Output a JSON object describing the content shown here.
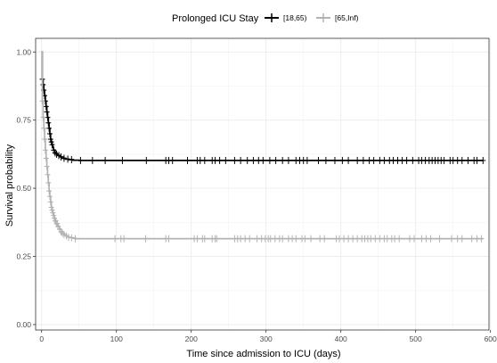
{
  "chart_data": {
    "type": "line",
    "title": "",
    "xlabel": "Time since admission to ICU (days)",
    "ylabel": "Survival probability",
    "xlim": [
      -8,
      598
    ],
    "ylim": [
      -0.02,
      1.05
    ],
    "xticks": [
      0,
      100,
      200,
      300,
      400,
      500,
      600
    ],
    "yticks": [
      0.0,
      0.25,
      0.5,
      0.75,
      1.0
    ],
    "ytick_labels": [
      "0.00",
      "0.25",
      "0.50",
      "0.75",
      "1.00"
    ],
    "grid": true,
    "legend": {
      "title": "Prolonged ICU Stay",
      "position": "top"
    },
    "series": [
      {
        "name": "[18,65)",
        "color": "#000000",
        "x": [
          0,
          1,
          2,
          3,
          4,
          5,
          6,
          7,
          8,
          9,
          10,
          11,
          12,
          13,
          14,
          15,
          16,
          18,
          20,
          22,
          25,
          28,
          32,
          36,
          42,
          50,
          590
        ],
        "y": [
          1.0,
          0.9,
          0.88,
          0.86,
          0.84,
          0.82,
          0.8,
          0.78,
          0.76,
          0.74,
          0.72,
          0.7,
          0.68,
          0.67,
          0.66,
          0.65,
          0.64,
          0.63,
          0.625,
          0.62,
          0.615,
          0.61,
          0.607,
          0.605,
          0.603,
          0.602,
          0.602
        ],
        "censor_x": [
          1,
          2,
          3,
          4,
          5,
          6,
          7,
          8,
          9,
          10,
          11,
          12,
          13,
          14,
          16,
          18,
          20,
          23,
          26,
          30,
          35,
          40,
          52,
          68,
          85,
          108,
          140,
          166,
          170,
          175,
          195,
          208,
          212,
          218,
          228,
          232,
          238,
          246,
          258,
          266,
          275,
          283,
          290,
          296,
          305,
          313,
          322,
          330,
          340,
          345,
          350,
          355,
          370,
          380,
          392,
          402,
          410,
          422,
          430,
          438,
          444,
          452,
          458,
          465,
          470,
          476,
          482,
          488,
          496,
          504,
          508,
          513,
          518,
          522,
          526,
          530,
          534,
          538,
          546,
          550,
          556,
          562,
          570,
          578,
          582,
          590
        ],
        "censor_y": 0.602
      },
      {
        "name": "[65,Inf)",
        "color": "#b3b3b3",
        "x": [
          0,
          1,
          2,
          3,
          4,
          5,
          6,
          7,
          8,
          9,
          10,
          11,
          12,
          13,
          14,
          15,
          16,
          17,
          18,
          20,
          22,
          24,
          26,
          28,
          30,
          33,
          36,
          40,
          45,
          590
        ],
        "y": [
          1.0,
          0.82,
          0.76,
          0.72,
          0.68,
          0.64,
          0.61,
          0.58,
          0.55,
          0.52,
          0.49,
          0.47,
          0.45,
          0.43,
          0.42,
          0.41,
          0.4,
          0.39,
          0.38,
          0.37,
          0.36,
          0.35,
          0.34,
          0.335,
          0.33,
          0.325,
          0.32,
          0.318,
          0.315,
          0.315
        ],
        "censor_x": [
          1,
          2,
          3,
          4,
          5,
          6,
          7,
          8,
          9,
          10,
          11,
          12,
          13,
          14,
          15,
          16,
          17,
          18,
          19,
          20,
          21,
          22,
          24,
          26,
          28,
          30,
          33,
          36,
          40,
          45,
          98,
          106,
          110,
          139,
          166,
          170,
          204,
          208,
          215,
          218,
          228,
          232,
          234,
          258,
          262,
          266,
          272,
          278,
          288,
          294,
          299,
          303,
          306,
          312,
          318,
          322,
          330,
          335,
          340,
          348,
          352,
          360,
          372,
          378,
          394,
          398,
          404,
          410,
          416,
          422,
          428,
          432,
          436,
          440,
          446,
          452,
          458,
          462,
          468,
          472,
          478,
          492,
          498,
          508,
          514,
          520,
          532,
          548,
          556,
          562,
          575,
          582,
          588
        ],
        "censor_y": 0.315
      }
    ]
  }
}
